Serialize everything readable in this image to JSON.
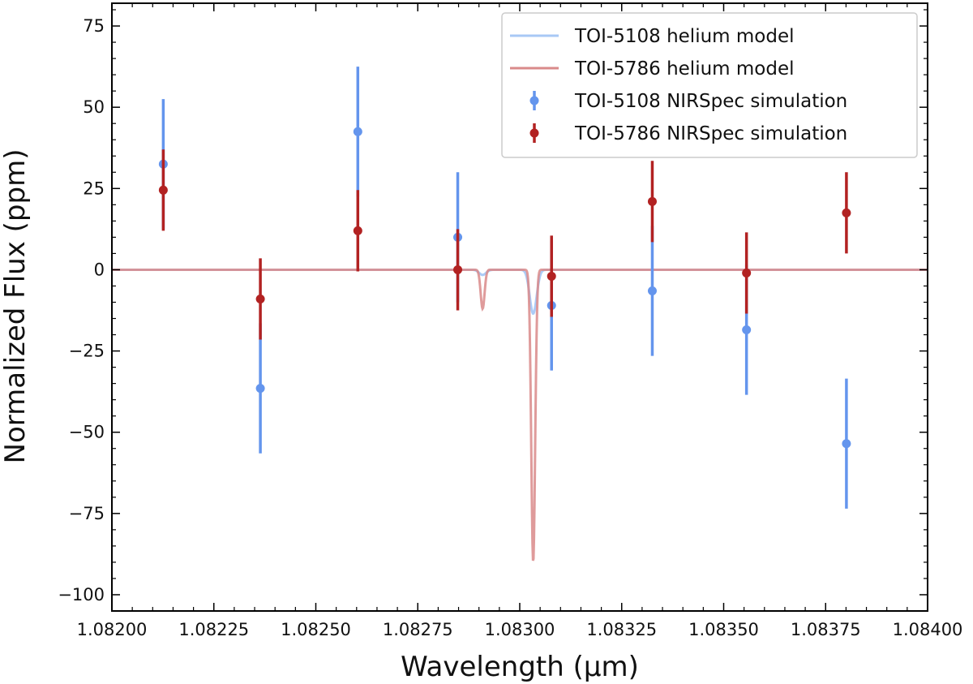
{
  "chart_data": {
    "type": "line",
    "title": "",
    "xlabel": "Wavelength (μm)",
    "ylabel": "Normalized Flux (ppm)",
    "xlim": [
      1.082,
      1.084
    ],
    "ylim": [
      -105,
      82
    ],
    "xticks": [
      1.082,
      1.08225,
      1.0825,
      1.08275,
      1.083,
      1.08325,
      1.0835,
      1.08375,
      1.084
    ],
    "xtick_labels": [
      "1.08200",
      "1.08225",
      "1.08250",
      "1.08275",
      "1.08300",
      "1.08325",
      "1.08350",
      "1.08375",
      "1.08400"
    ],
    "yticks": [
      75,
      50,
      25,
      0,
      -25,
      -50,
      -75,
      -100
    ],
    "ytick_labels": [
      "75",
      "50",
      "25",
      "0",
      "−25",
      "−50",
      "−75",
      "−100"
    ],
    "legend_position": "top-right",
    "legend": [
      {
        "label": "TOI-5108 helium model",
        "kind": "line",
        "color": "#a8c8f5"
      },
      {
        "label": "TOI-5786 helium model",
        "kind": "line",
        "color": "#d98a8a"
      },
      {
        "label": "TOI-5108 NIRSpec simulation",
        "kind": "errorbar",
        "color": "#6495ed"
      },
      {
        "label": "TOI-5786 NIRSpec simulation",
        "kind": "errorbar",
        "color": "#b22222"
      }
    ],
    "models": [
      {
        "name": "TOI-5108 helium model",
        "color": "#a8c8f5",
        "baseline": 0,
        "components": [
          {
            "center": 1.082909,
            "depth": -1.6,
            "sigma": 8.5e-06
          },
          {
            "center": 1.083033,
            "depth": -13.5,
            "sigma": 8.5e-06
          }
        ]
      },
      {
        "name": "TOI-5786 helium model",
        "color": "#d98a8a",
        "baseline": 0,
        "components": [
          {
            "center": 1.082909,
            "depth": -12,
            "sigma": 4.8e-06
          },
          {
            "center": 1.083033,
            "depth": -90,
            "sigma": 4.8e-06
          }
        ]
      }
    ],
    "series": [
      {
        "name": "TOI-5108 NIRSpec simulation",
        "color": "#6495ed",
        "x": [
          1.082126,
          1.082364,
          1.082603,
          1.082848,
          1.083078,
          1.083325,
          1.083556,
          1.083801
        ],
        "y": [
          32.5,
          -36.5,
          42.5,
          10,
          -11,
          -6.5,
          -18.5,
          -53.5
        ],
        "yerr": [
          20,
          20,
          20,
          20,
          20,
          20,
          20,
          20
        ]
      },
      {
        "name": "TOI-5786 NIRSpec simulation",
        "color": "#b22222",
        "x": [
          1.082126,
          1.082364,
          1.082603,
          1.082848,
          1.083078,
          1.083325,
          1.083556,
          1.083801
        ],
        "y": [
          24.5,
          -9,
          12,
          0,
          -2,
          21,
          -1,
          17.5
        ],
        "yerr": [
          12.5,
          12.5,
          12.5,
          12.5,
          12.5,
          12.5,
          12.5,
          12.5
        ]
      }
    ]
  }
}
